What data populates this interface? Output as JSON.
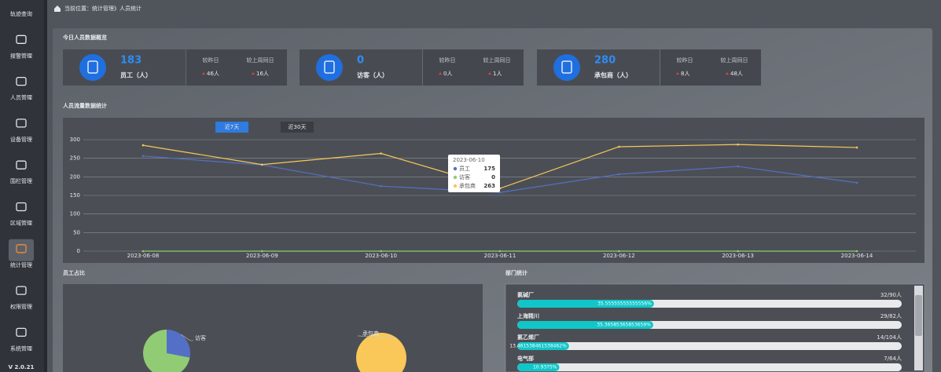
{
  "sidebar": {
    "items": [
      "轨迹查询",
      "报警管理",
      "人员管理",
      "设备管理",
      "围栏管理",
      "区域管理",
      "统计管理",
      "权限管理",
      "系统管理"
    ],
    "active": 6,
    "version": "V 2.0.21"
  },
  "breadcrumb": "当前位置：统计管理》人员统计",
  "overview": {
    "title": "今日人员数据概览",
    "cards": [
      {
        "count": 183,
        "label": "员工（人）",
        "compare": [
          {
            "label": "较昨日",
            "value": "46人"
          },
          {
            "label": "较上周同日",
            "value": "16人"
          }
        ]
      },
      {
        "count": 0,
        "label": "访客（人）",
        "compare": [
          {
            "label": "较昨日",
            "value": "0人"
          },
          {
            "label": "较上周同日",
            "value": "1人"
          }
        ]
      },
      {
        "count": 280,
        "label": "承包商（人）",
        "compare": [
          {
            "label": "较昨日",
            "value": "8人"
          },
          {
            "label": "较上周同日",
            "value": "48人"
          }
        ]
      }
    ]
  },
  "flow": {
    "title": "人员流量数据统计",
    "tabs": [
      "近7天",
      "近30天"
    ]
  },
  "chart_data": {
    "type": "line",
    "x": [
      "2023-06-08",
      "2023-06-09",
      "2023-06-10",
      "2023-06-11",
      "2023-06-12",
      "2023-06-13",
      "2023-06-14"
    ],
    "series": [
      {
        "name": "员工",
        "color": "#5470c6",
        "values": [
          256,
          232,
          175,
          158,
          207,
          228,
          184
        ]
      },
      {
        "name": "访客",
        "color": "#91cc75",
        "values": [
          0,
          0,
          0,
          0,
          0,
          0,
          0
        ]
      },
      {
        "name": "承包商",
        "color": "#fac858",
        "values": [
          285,
          233,
          263,
          169,
          281,
          287,
          279
        ]
      }
    ],
    "ylim": [
      0,
      300
    ],
    "yticks": [
      0,
      50,
      100,
      150,
      200,
      250,
      300
    ],
    "grid": true
  },
  "staff_share": {
    "title": "员工占比",
    "pies": [
      {
        "label": "访客",
        "slices": [
          {
            "color": "#5470c6",
            "value": 28
          },
          {
            "color": "#91cc75",
            "value": 72
          }
        ]
      },
      {
        "label": "承包商",
        "slices": [
          {
            "color": "#fac858",
            "value": 100
          }
        ]
      }
    ]
  },
  "departments": {
    "title": "部门统计",
    "rows": [
      {
        "name": "氯碱厂",
        "count": "32/90人",
        "percent": 35.55555555555556,
        "percent_label": "35.55555555555556%"
      },
      {
        "name": "上海精川",
        "count": "29/82人",
        "percent": 35.36585365853659,
        "percent_label": "35.36585365853659%"
      },
      {
        "name": "氯乙烯厂",
        "count": "14/104人",
        "percent": 13.461538461538462,
        "percent_label": "13.461538461538462%"
      },
      {
        "name": "电气部",
        "count": "7/64人",
        "percent": 10.9375,
        "percent_label": "10.9375%"
      }
    ]
  }
}
